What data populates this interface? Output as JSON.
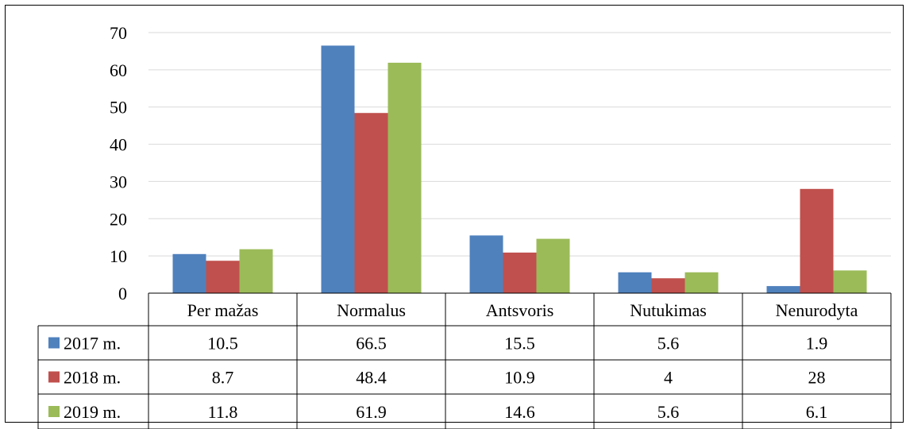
{
  "chart_data": {
    "type": "bar",
    "categories": [
      "Per mažas",
      "Normalus",
      "Antsvoris",
      "Nutukimas",
      "Nenurodyta"
    ],
    "series": [
      {
        "name": "2017 m.",
        "color": "#4F81BD",
        "values": [
          10.5,
          66.5,
          15.5,
          5.6,
          1.9
        ],
        "labels": [
          "10.5",
          "66.5",
          "15.5",
          "5.6",
          "1.9"
        ]
      },
      {
        "name": "2018 m.",
        "color": "#C0504D",
        "values": [
          8.7,
          48.4,
          10.9,
          4,
          28
        ],
        "labels": [
          "8.7",
          "48.4",
          "10.9",
          "4",
          "28"
        ]
      },
      {
        "name": "2019 m.",
        "color": "#9BBB59",
        "values": [
          11.8,
          61.9,
          14.6,
          5.6,
          6.1
        ],
        "labels": [
          "11.8",
          "61.9",
          "14.6",
          "5.6",
          "6.1"
        ]
      }
    ],
    "yticks": [
      "0",
      "10",
      "20",
      "30",
      "40",
      "50",
      "60",
      "70"
    ],
    "ylim": [
      0,
      70
    ],
    "grid": true,
    "legend": "data-table-left",
    "gridColor": "#D9D9D9"
  }
}
